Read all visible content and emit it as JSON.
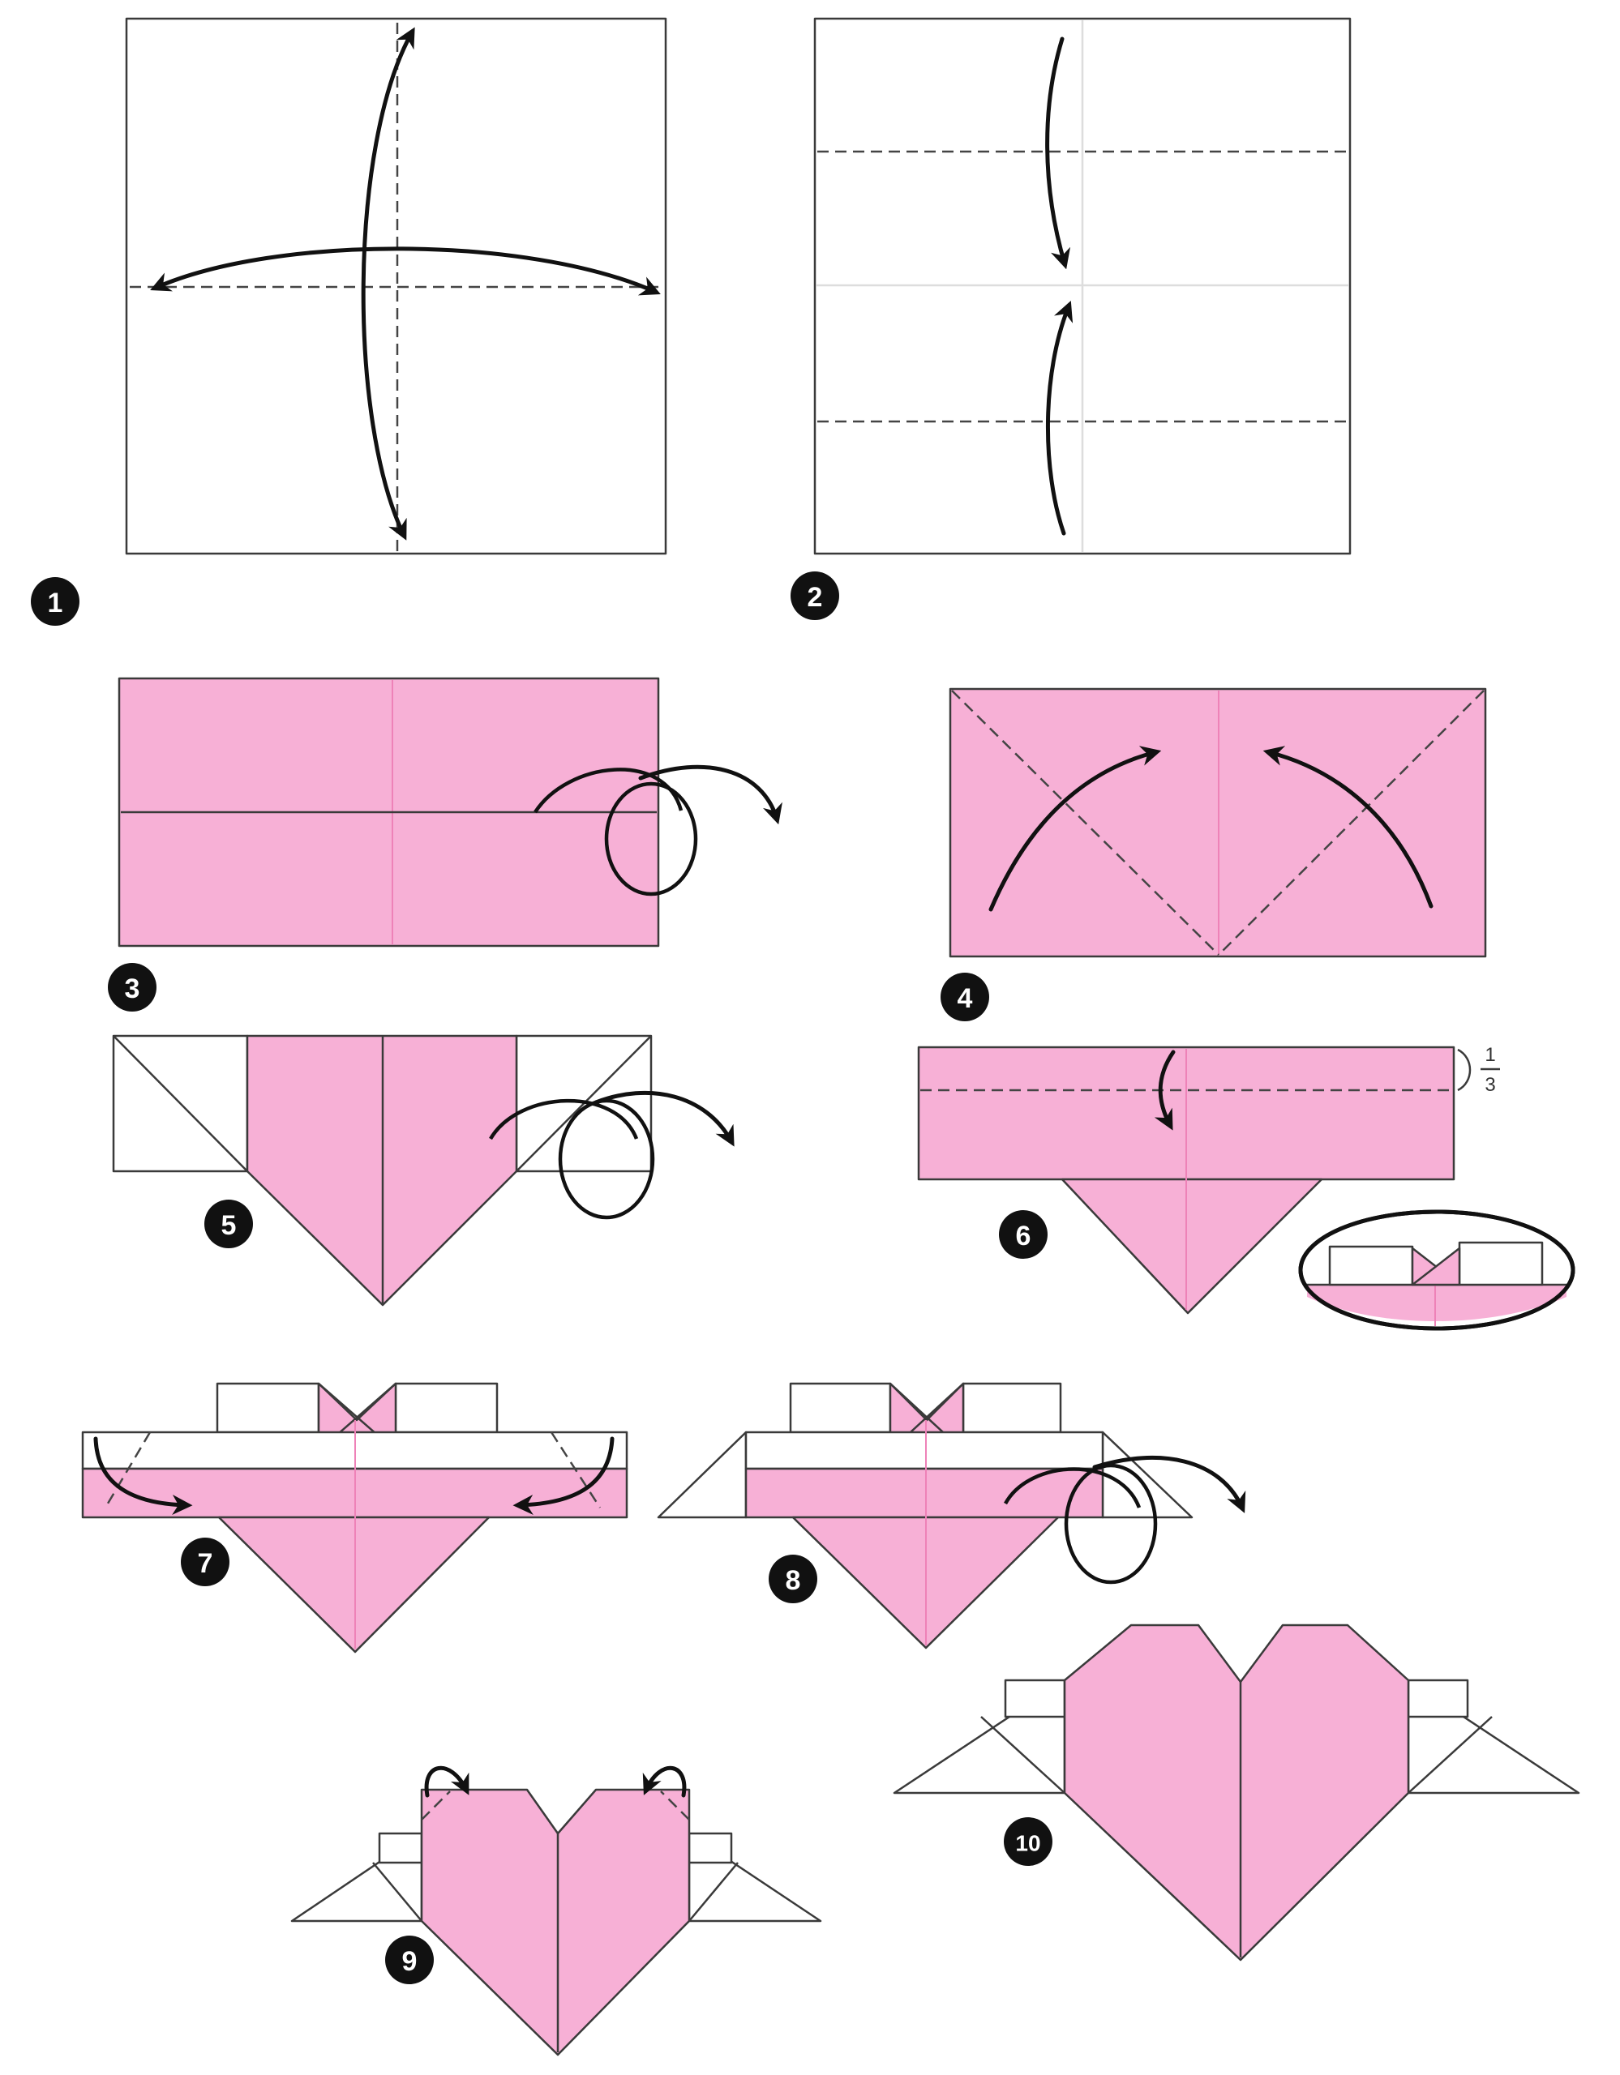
{
  "steps": [
    {
      "number": "1"
    },
    {
      "number": "2"
    },
    {
      "number": "3"
    },
    {
      "number": "4"
    },
    {
      "number": "5"
    },
    {
      "number": "6"
    },
    {
      "number": "7"
    },
    {
      "number": "8"
    },
    {
      "number": "9"
    },
    {
      "number": "10"
    }
  ],
  "annotations": {
    "fraction_numerator": "1",
    "fraction_denominator": "3"
  },
  "colors": {
    "paper_pink": "#f7b0d6",
    "paper_white": "#ffffff",
    "outline": "#3a3a3a",
    "arrow": "#111111",
    "crease_pink": "#ee82b8"
  },
  "icons": [
    "fold-arrow-icon",
    "turn-over-icon"
  ]
}
